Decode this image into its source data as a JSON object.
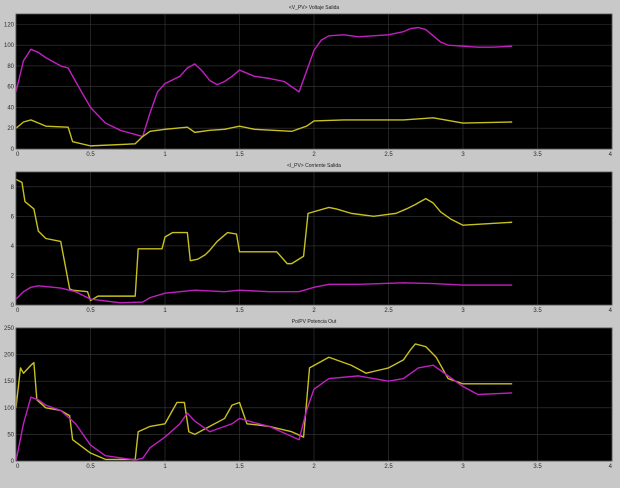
{
  "chart_data": [
    {
      "type": "line",
      "title": "<V_PV> Voltaje Salida",
      "xlim": [
        0,
        4
      ],
      "ylim": [
        0,
        130
      ],
      "x_ticks": [
        0,
        0.5,
        1,
        1.5,
        2,
        2.5,
        3,
        3.5,
        4
      ],
      "x_tick_labels": [
        "0",
        "0.5",
        "1",
        "1.5",
        "2",
        "2.5",
        "3",
        "3.5",
        "4"
      ],
      "y_ticks": [
        0,
        20,
        40,
        60,
        80,
        100,
        120
      ],
      "y_tick_labels": [
        "0",
        "20",
        "40",
        "60",
        "80",
        "100",
        "120"
      ],
      "grid": true,
      "series": [
        {
          "color": "#c020c0",
          "x": [
            0,
            0.05,
            0.1,
            0.15,
            0.2,
            0.3,
            0.35,
            0.4,
            0.5,
            0.6,
            0.7,
            0.8,
            0.85,
            0.9,
            0.95,
            1.0,
            1.1,
            1.15,
            1.2,
            1.25,
            1.3,
            1.35,
            1.4,
            1.45,
            1.5,
            1.55,
            1.6,
            1.7,
            1.8,
            1.9,
            1.95,
            2.0,
            2.05,
            2.1,
            2.2,
            2.3,
            2.5,
            2.6,
            2.65,
            2.7,
            2.75,
            2.8,
            2.85,
            2.9,
            3.0,
            3.1,
            3.2,
            3.33
          ],
          "y": [
            55,
            85,
            96,
            93,
            88,
            80,
            78,
            65,
            40,
            25,
            18,
            14,
            12,
            35,
            55,
            63,
            70,
            78,
            82,
            75,
            66,
            62,
            65,
            70,
            76,
            73,
            70,
            68,
            65,
            55,
            75,
            95,
            105,
            109,
            110,
            108,
            110,
            113,
            116,
            117,
            115,
            109,
            103,
            100,
            99,
            98,
            98,
            99
          ]
        },
        {
          "color": "#c8c020",
          "x": [
            0,
            0.05,
            0.1,
            0.15,
            0.2,
            0.35,
            0.38,
            0.5,
            0.8,
            0.85,
            0.9,
            1.0,
            1.15,
            1.2,
            1.3,
            1.4,
            1.5,
            1.6,
            1.85,
            1.95,
            2.0,
            2.2,
            2.6,
            2.8,
            3.0,
            3.33
          ],
          "y": [
            20,
            26,
            28,
            25,
            22,
            21,
            7,
            3,
            5,
            12,
            17,
            19,
            21,
            16,
            18,
            19,
            22,
            19,
            17,
            22,
            27,
            28,
            28,
            30,
            25,
            26
          ]
        }
      ]
    },
    {
      "type": "line",
      "title": "<I_PV> Corriente Salida",
      "xlim": [
        0,
        4
      ],
      "ylim": [
        0,
        9
      ],
      "x_ticks": [
        0,
        0.5,
        1,
        1.5,
        2,
        2.5,
        3,
        3.5,
        4
      ],
      "x_tick_labels": [
        "0",
        "0.5",
        "1",
        "1.5",
        "2",
        "2.5",
        "3",
        "3.5",
        "4"
      ],
      "y_ticks": [
        0,
        2,
        4,
        6,
        8
      ],
      "y_tick_labels": [
        "0",
        "2",
        "4",
        "6",
        "8"
      ],
      "grid": true,
      "series": [
        {
          "color": "#c8c020",
          "x": [
            0,
            0.04,
            0.06,
            0.12,
            0.15,
            0.2,
            0.3,
            0.36,
            0.38,
            0.48,
            0.5,
            0.55,
            0.8,
            0.82,
            0.98,
            1.0,
            1.05,
            1.15,
            1.17,
            1.22,
            1.27,
            1.3,
            1.35,
            1.42,
            1.48,
            1.5,
            1.75,
            1.82,
            1.85,
            1.93,
            1.96,
            2.1,
            2.15,
            2.25,
            2.4,
            2.55,
            2.62,
            2.68,
            2.75,
            2.8,
            2.85,
            2.92,
            3.0,
            3.33
          ],
          "y": [
            8.5,
            8.3,
            7.0,
            6.5,
            5.0,
            4.5,
            4.3,
            1.1,
            1.0,
            0.9,
            0.3,
            0.6,
            0.6,
            3.8,
            3.8,
            4.6,
            4.9,
            4.9,
            3.0,
            3.1,
            3.4,
            3.7,
            4.3,
            4.9,
            4.8,
            3.6,
            3.6,
            2.8,
            2.8,
            3.3,
            6.2,
            6.6,
            6.5,
            6.2,
            6.0,
            6.2,
            6.5,
            6.8,
            7.2,
            6.9,
            6.3,
            5.8,
            5.4,
            5.6
          ]
        },
        {
          "color": "#c020c0",
          "x": [
            0,
            0.05,
            0.1,
            0.15,
            0.2,
            0.3,
            0.4,
            0.5,
            0.7,
            0.85,
            0.9,
            1.0,
            1.2,
            1.4,
            1.5,
            1.7,
            1.9,
            2.0,
            2.1,
            2.3,
            2.6,
            2.8,
            3.0,
            3.33
          ],
          "y": [
            0.4,
            0.9,
            1.2,
            1.3,
            1.25,
            1.15,
            0.9,
            0.4,
            0.15,
            0.2,
            0.5,
            0.8,
            1.0,
            0.9,
            1.0,
            0.9,
            0.9,
            1.2,
            1.4,
            1.4,
            1.5,
            1.45,
            1.35,
            1.35
          ]
        }
      ]
    },
    {
      "type": "line",
      "title": "Po/PV Potencia Out",
      "xlim": [
        0,
        4
      ],
      "ylim": [
        0,
        250
      ],
      "x_ticks": [
        0,
        0.5,
        1,
        1.5,
        2,
        2.5,
        3,
        3.5,
        4
      ],
      "x_tick_labels": [
        "0",
        "0.5",
        "1",
        "1.5",
        "2",
        "2.5",
        "3",
        "3.5",
        "4"
      ],
      "y_ticks": [
        0,
        50,
        100,
        150,
        200,
        250
      ],
      "y_tick_labels": [
        "0",
        "50",
        "100",
        "150",
        "200",
        "250"
      ],
      "grid": true,
      "series": [
        {
          "color": "#c8c020",
          "x": [
            0,
            0.03,
            0.05,
            0.1,
            0.12,
            0.14,
            0.2,
            0.3,
            0.36,
            0.38,
            0.5,
            0.6,
            0.8,
            0.82,
            0.9,
            1.0,
            1.08,
            1.13,
            1.16,
            1.2,
            1.3,
            1.4,
            1.45,
            1.5,
            1.55,
            1.7,
            1.85,
            1.93,
            1.97,
            2.1,
            2.25,
            2.35,
            2.5,
            2.6,
            2.65,
            2.68,
            2.75,
            2.82,
            2.9,
            3.0,
            3.33
          ],
          "y": [
            100,
            175,
            165,
            180,
            185,
            115,
            100,
            95,
            85,
            40,
            15,
            3,
            3,
            55,
            65,
            70,
            110,
            110,
            55,
            50,
            65,
            80,
            105,
            110,
            70,
            65,
            55,
            45,
            175,
            195,
            180,
            165,
            175,
            190,
            210,
            220,
            215,
            195,
            155,
            145,
            145
          ]
        },
        {
          "color": "#c020c0",
          "x": [
            0,
            0.05,
            0.1,
            0.15,
            0.2,
            0.3,
            0.4,
            0.5,
            0.6,
            0.8,
            0.85,
            0.9,
            1.0,
            1.1,
            1.15,
            1.2,
            1.3,
            1.45,
            1.5,
            1.6,
            1.7,
            1.9,
            1.95,
            2.0,
            2.1,
            2.3,
            2.5,
            2.6,
            2.7,
            2.8,
            2.9,
            3.0,
            3.1,
            3.33
          ],
          "y": [
            0,
            70,
            120,
            115,
            105,
            95,
            70,
            30,
            10,
            2,
            5,
            25,
            45,
            70,
            90,
            75,
            55,
            70,
            80,
            72,
            65,
            40,
            95,
            135,
            155,
            160,
            150,
            155,
            175,
            180,
            160,
            140,
            125,
            128
          ]
        }
      ]
    }
  ]
}
